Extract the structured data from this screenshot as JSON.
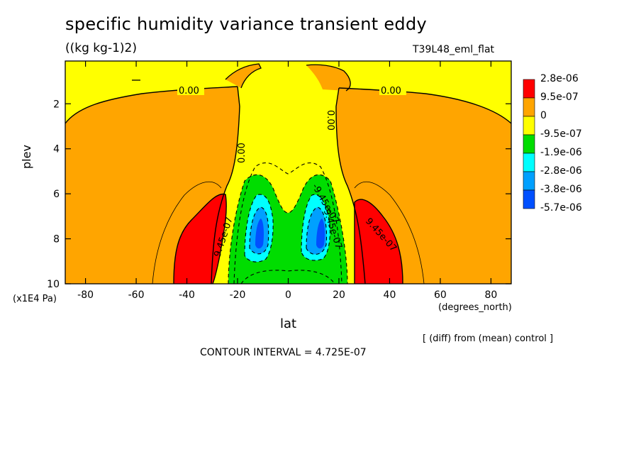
{
  "title": "specific humidity variance transient eddy",
  "units": "((kg kg-1)2)",
  "run_name": "T39L48_eml_flat",
  "y_axis_label": "plev",
  "y_axis_units": "(x1E4 Pa)",
  "x_axis_label": "lat",
  "x_axis_units": "(degrees_north)",
  "diff_note": "[ (diff) from (mean) control ]",
  "contour_interval": "CONTOUR INTERVAL = 4.725E-07",
  "contour_labels": [
    "0.00",
    "0.00",
    "0.00",
    "0.00",
    "9.45e-07",
    "9.45e-07",
    "-9.45e-07",
    "-9.45e-07"
  ],
  "legend": {
    "labels": [
      "2.8e-06",
      "9.5e-07",
      "0",
      "-9.5e-07",
      "-1.9e-06",
      "-2.8e-06",
      "-3.8e-06",
      "-5.7e-06"
    ],
    "colors": [
      "#ff0000",
      "#ffa500",
      "#ffff00",
      "#00dd00",
      "#00ffff",
      "#00a0ff",
      "#0050ff"
    ]
  },
  "chart_data": {
    "type": "contour",
    "x_ticks": [
      -80,
      -60,
      -40,
      -20,
      0,
      20,
      40,
      60,
      80
    ],
    "x_tick_labels": [
      "-80",
      "-60",
      "-40",
      "-20",
      "0",
      "20",
      "40",
      "60",
      "80"
    ],
    "y_ticks": [
      2,
      4,
      6,
      8,
      10
    ],
    "y_tick_labels": [
      "2",
      "4",
      "6",
      "8",
      "10"
    ],
    "xlim": [
      -88,
      88
    ],
    "ylim": [
      10,
      0.1
    ],
    "y_inverted": true,
    "levels": [
      -5.7e-06,
      -3.8e-06,
      -2.8e-06,
      -1.9e-06,
      -9.5e-07,
      0,
      9.5e-07,
      2.8e-06
    ],
    "features": [
      {
        "region": "SH subtropics",
        "lat": -40,
        "plev": 8,
        "sign": "positive",
        "max_level": 2.8e-06
      },
      {
        "region": "NH subtropics",
        "lat": 38,
        "plev": 8,
        "sign": "positive",
        "max_level": 2.8e-06
      },
      {
        "region": "SH tropics",
        "lat": -13,
        "plev": 8,
        "sign": "negative",
        "min_level": -3.8e-06
      },
      {
        "region": "NH tropics",
        "lat": 13,
        "plev": 8,
        "sign": "negative",
        "min_level": -3.8e-06
      }
    ]
  }
}
